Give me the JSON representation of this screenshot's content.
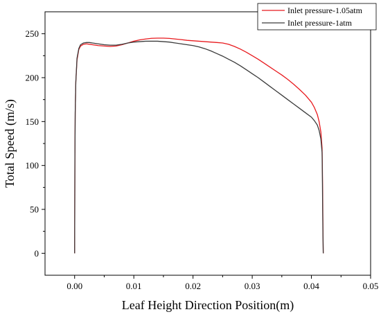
{
  "chart_data": {
    "type": "line",
    "title": "",
    "xlabel": "Leaf Height Direction Position(m)",
    "ylabel": "Total Speed (m/s)",
    "xlim": [
      -0.005,
      0.05
    ],
    "ylim": [
      -25,
      275
    ],
    "xticks": [
      0.0,
      0.01,
      0.02,
      0.03,
      0.04,
      0.05
    ],
    "xtick_labels": [
      "0.00",
      "0.01",
      "0.02",
      "0.03",
      "0.04",
      "0.05"
    ],
    "yticks": [
      0,
      50,
      100,
      150,
      200,
      250
    ],
    "ytick_labels": [
      "0",
      "50",
      "100",
      "150",
      "200",
      "250"
    ],
    "grid": false,
    "legend_position": "top-right",
    "series": [
      {
        "name": "Inlet pressure-1.05atm",
        "color": "#e8191d",
        "x": [
          0.0,
          5e-05,
          0.0001,
          0.0002,
          0.0004,
          0.0007,
          0.001,
          0.0015,
          0.002,
          0.003,
          0.004,
          0.005,
          0.006,
          0.007,
          0.008,
          0.009,
          0.01,
          0.011,
          0.012,
          0.013,
          0.014,
          0.015,
          0.016,
          0.017,
          0.018,
          0.019,
          0.02,
          0.021,
          0.022,
          0.023,
          0.024,
          0.025,
          0.026,
          0.027,
          0.028,
          0.029,
          0.03,
          0.031,
          0.032,
          0.033,
          0.034,
          0.035,
          0.036,
          0.037,
          0.038,
          0.039,
          0.04,
          0.0405,
          0.041,
          0.0413,
          0.0416,
          0.0418,
          0.04185,
          0.0419,
          0.04195,
          0.042
        ],
        "y": [
          0,
          110,
          160,
          195,
          220,
          232,
          236,
          238,
          238.5,
          237.5,
          236.5,
          236,
          235.5,
          236,
          237.5,
          239.5,
          241.5,
          243,
          244,
          244.8,
          245,
          245,
          244.7,
          244,
          243.3,
          242.5,
          242,
          241.5,
          241,
          240.5,
          240,
          239.5,
          238,
          235.5,
          232.5,
          229,
          225,
          221,
          216.5,
          212,
          207.5,
          203,
          198,
          192.5,
          186.5,
          180,
          172,
          166,
          158,
          150,
          138,
          120,
          100,
          70,
          30,
          0
        ]
      },
      {
        "name": "Inlet pressure-1atm",
        "color": "#3a3a3a",
        "x": [
          0.0,
          5e-05,
          0.0001,
          0.0002,
          0.0004,
          0.0007,
          0.001,
          0.0015,
          0.002,
          0.0025,
          0.003,
          0.004,
          0.005,
          0.006,
          0.007,
          0.008,
          0.009,
          0.01,
          0.011,
          0.012,
          0.013,
          0.014,
          0.015,
          0.016,
          0.017,
          0.018,
          0.019,
          0.02,
          0.021,
          0.022,
          0.023,
          0.024,
          0.025,
          0.026,
          0.027,
          0.028,
          0.029,
          0.03,
          0.031,
          0.032,
          0.033,
          0.034,
          0.035,
          0.036,
          0.037,
          0.038,
          0.039,
          0.04,
          0.0405,
          0.041,
          0.0413,
          0.0416,
          0.0418,
          0.04185,
          0.0419,
          0.04195,
          0.042
        ],
        "y": [
          0,
          110,
          160,
          195,
          222,
          233,
          237.5,
          239.5,
          240,
          240,
          239.5,
          238.5,
          237.5,
          237,
          237,
          238,
          239.5,
          240.5,
          241,
          241.5,
          241.5,
          241.5,
          241,
          240.5,
          239.5,
          238.5,
          237.5,
          236.5,
          235,
          233,
          230.5,
          227.5,
          224.5,
          221,
          217.5,
          213.5,
          209,
          204.5,
          200,
          195,
          190,
          185,
          180,
          175,
          170,
          165,
          160,
          155,
          151,
          146,
          140,
          130,
          115,
          90,
          50,
          20,
          0
        ]
      }
    ]
  }
}
